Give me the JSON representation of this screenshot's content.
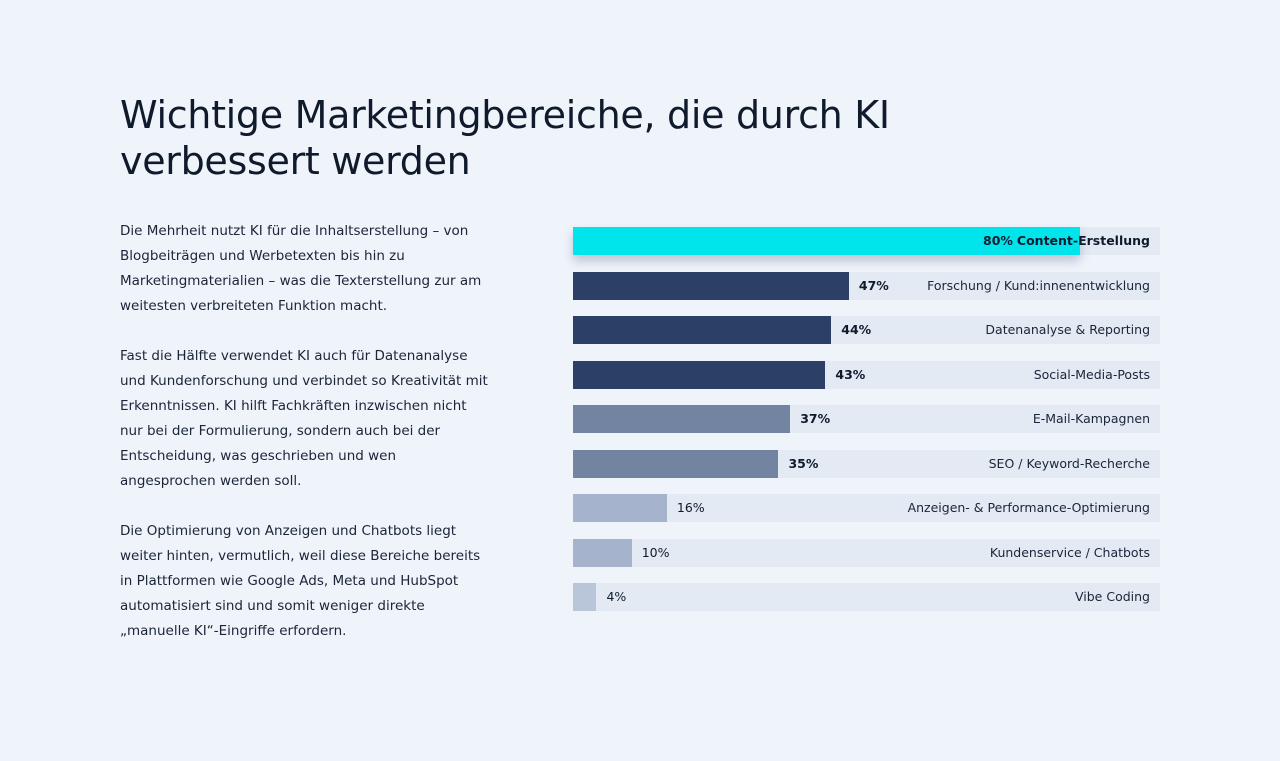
{
  "title": "Wichtige Marketingbereiche, die durch KI verbessert werden",
  "paragraphs": [
    "Die Mehrheit nutzt KI für die Inhaltserstellung – von Blogbeiträgen und Werbetexten bis hin zu Marketingmaterialien – was die Texterstellung zur am weitesten verbreiteten Funktion macht.",
    "Fast die Hälfte verwendet KI auch für Datenanalyse und Kundenforschung und verbindet so Kreativität mit Erkenntnissen. KI hilft Fachkräften inzwischen nicht nur bei der Formulierung, sondern auch bei der Entscheidung, was geschrieben und wen angesprochen werden soll.",
    "Die Optimierung von Anzeigen und Chatbots liegt weiter hinten, vermutlich, weil diese Bereiche bereits in Plattformen wie Google Ads, Meta und HubSpot automatisiert sind und somit weniger direkte „manuelle KI“-Eingriffe erfordern."
  ],
  "chart_data": {
    "type": "bar",
    "orientation": "horizontal",
    "xlim": [
      0,
      100
    ],
    "grid": false,
    "categories": [
      "Content-Erstellung",
      "Forschung / Kund:innenentwicklung",
      "Datenanalyse & Reporting",
      "Social-Media-Posts",
      "E-Mail-Kampagnen",
      "SEO / Keyword-Recherche",
      "Anzeigen- & Performance-Optimierung",
      "Kundenservice / Chatbots",
      "Vibe Coding"
    ],
    "values": [
      80,
      47,
      44,
      43,
      37,
      35,
      16,
      10,
      4
    ],
    "value_labels": [
      "80%",
      "47%",
      "44%",
      "43%",
      "37%",
      "35%",
      "16%",
      "10%",
      "4%"
    ],
    "colors": [
      "#00e5ec",
      "#2c3f66",
      "#2c3f66",
      "#2c3f66",
      "#7384a3",
      "#7384a3",
      "#a5b3cc",
      "#a5b3cc",
      "#b9c6da"
    ],
    "bold_labels": [
      true,
      true,
      true,
      true,
      true,
      true,
      false,
      false,
      false
    ],
    "track_color": "#e3eaf4"
  }
}
